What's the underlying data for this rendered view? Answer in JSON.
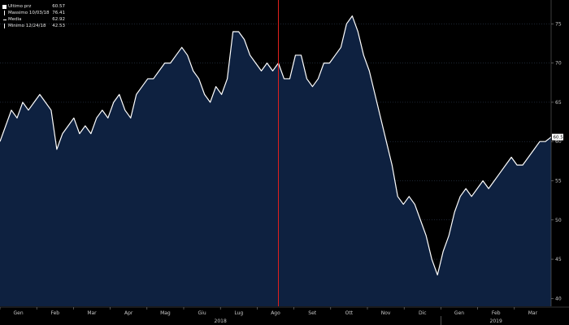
{
  "legend": [
    {
      "marker": "square",
      "label": "Ultimo prz",
      "value": "60.57"
    },
    {
      "marker": "tick",
      "label": "Massimo 10/03/18",
      "value": "76.41"
    },
    {
      "marker": "dash",
      "label": "Media",
      "value": "62.92"
    },
    {
      "marker": "tick",
      "label": "Minimo 12/24/18",
      "value": "42.53"
    }
  ],
  "colors": {
    "background": "#000000",
    "area_fill": "#0e2140",
    "line": "#ffffff",
    "marker_line": "#e0201c",
    "grid": "#3a4b66",
    "axis_text": "#c9c9c9",
    "last_price_box": "#ffffff"
  },
  "chart_data": {
    "type": "area",
    "title": "",
    "xlabel": "",
    "ylabel": "",
    "ylim": [
      39,
      77
    ],
    "yticks": [
      40,
      45,
      50,
      55,
      60,
      65,
      70,
      75
    ],
    "grid": true,
    "x_tick_labels": [
      "Gen",
      "Feb",
      "Mar",
      "Apr",
      "Mag",
      "Giu",
      "Lug",
      "Ago",
      "Set",
      "Ott",
      "Nov",
      "Dic",
      "Gen",
      "Feb",
      "Mar"
    ],
    "year_labels": [
      "2018",
      "2019"
    ],
    "last_price_label": "60.57",
    "vertical_marker_week": 49,
    "series": [
      {
        "values": [
          60,
          62,
          64,
          63,
          65,
          64,
          65,
          66,
          65,
          64,
          59,
          61,
          62,
          63,
          61,
          62,
          61,
          63,
          64,
          63,
          65,
          66,
          64,
          63,
          66,
          67,
          68,
          68,
          69,
          70,
          70,
          71,
          72,
          71,
          69,
          68,
          66,
          65,
          67,
          66,
          68,
          74,
          74,
          73,
          71,
          70,
          69,
          70,
          69,
          70,
          68,
          68,
          71,
          71,
          68,
          67,
          68,
          70,
          70,
          71,
          72,
          75,
          76,
          74,
          71,
          69,
          66,
          63,
          60,
          57,
          53,
          52,
          53,
          52,
          50,
          48,
          45,
          43,
          46,
          48,
          51,
          53,
          54,
          53,
          54,
          55,
          54,
          55,
          56,
          57,
          58,
          57,
          57,
          58,
          59,
          60,
          60,
          60.57
        ]
      }
    ]
  }
}
